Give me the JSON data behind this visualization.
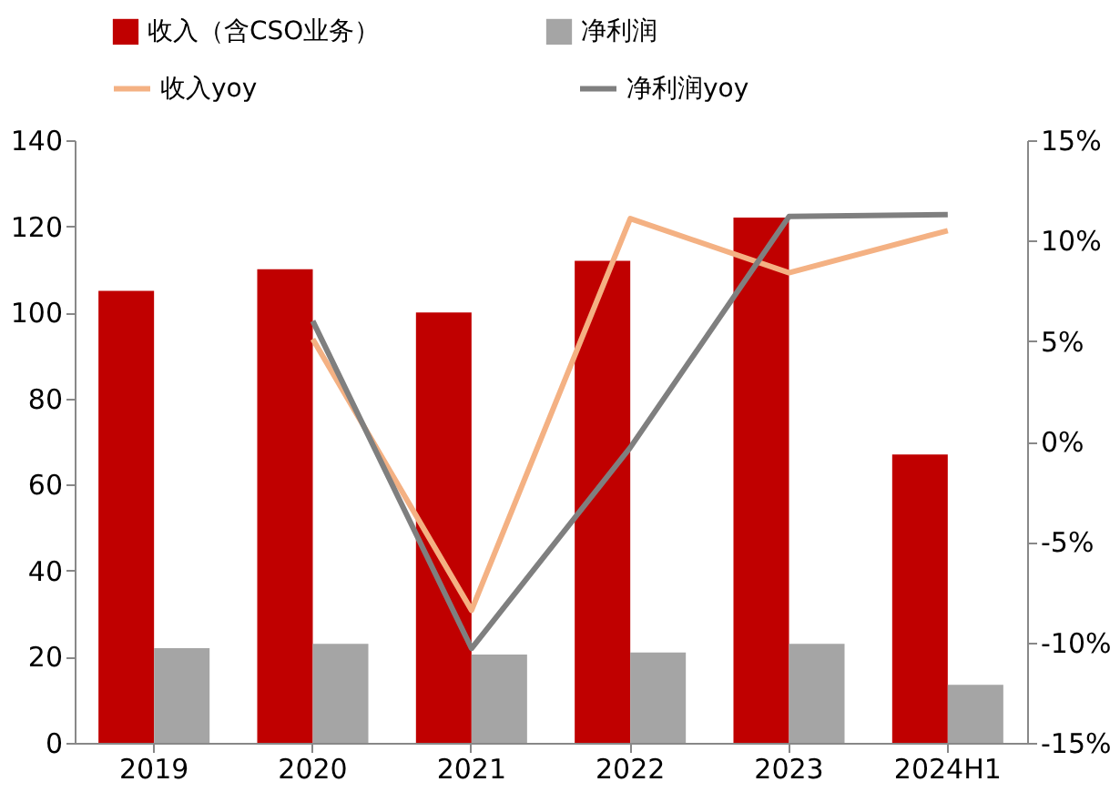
{
  "chart_data": {
    "type": "bar",
    "categories": [
      "2019",
      "2020",
      "2021",
      "2022",
      "2023",
      "2024H1"
    ],
    "series": [
      {
        "name": "收入（含CSO业务）",
        "color": "#c00000",
        "values": [
          105,
          110,
          100,
          112,
          122,
          67
        ]
      },
      {
        "name": "净利润",
        "color": "#a5a5a5",
        "values": [
          22,
          23,
          20.5,
          21,
          23,
          13.5
        ]
      },
      {
        "name": "收入yoy",
        "type": "line",
        "axis": "y2",
        "color": "#f4b183",
        "values": [
          null,
          5.1,
          -8.4,
          11.1,
          8.4,
          10.5
        ]
      },
      {
        "name": "净利润yoy",
        "type": "line",
        "axis": "y2",
        "color": "#7f7f7f",
        "values": [
          null,
          6.0,
          -10.3,
          -0.3,
          11.2,
          11.3
        ]
      }
    ],
    "ylim": [
      0,
      140
    ],
    "yticks": [
      0,
      20,
      40,
      60,
      80,
      100,
      120,
      140
    ],
    "y2lim": [
      -15,
      15
    ],
    "y2ticks": [
      {
        "value": -15,
        "label": "-15%"
      },
      {
        "value": -10,
        "label": "-10%"
      },
      {
        "value": -5,
        "label": "-5%"
      },
      {
        "value": 0,
        "label": "0%"
      },
      {
        "value": 5,
        "label": "5%"
      },
      {
        "value": 10,
        "label": "10%"
      },
      {
        "value": 15,
        "label": "15%"
      }
    ],
    "grid": false,
    "legend": "top",
    "marker": "none",
    "line_style": "solid"
  }
}
